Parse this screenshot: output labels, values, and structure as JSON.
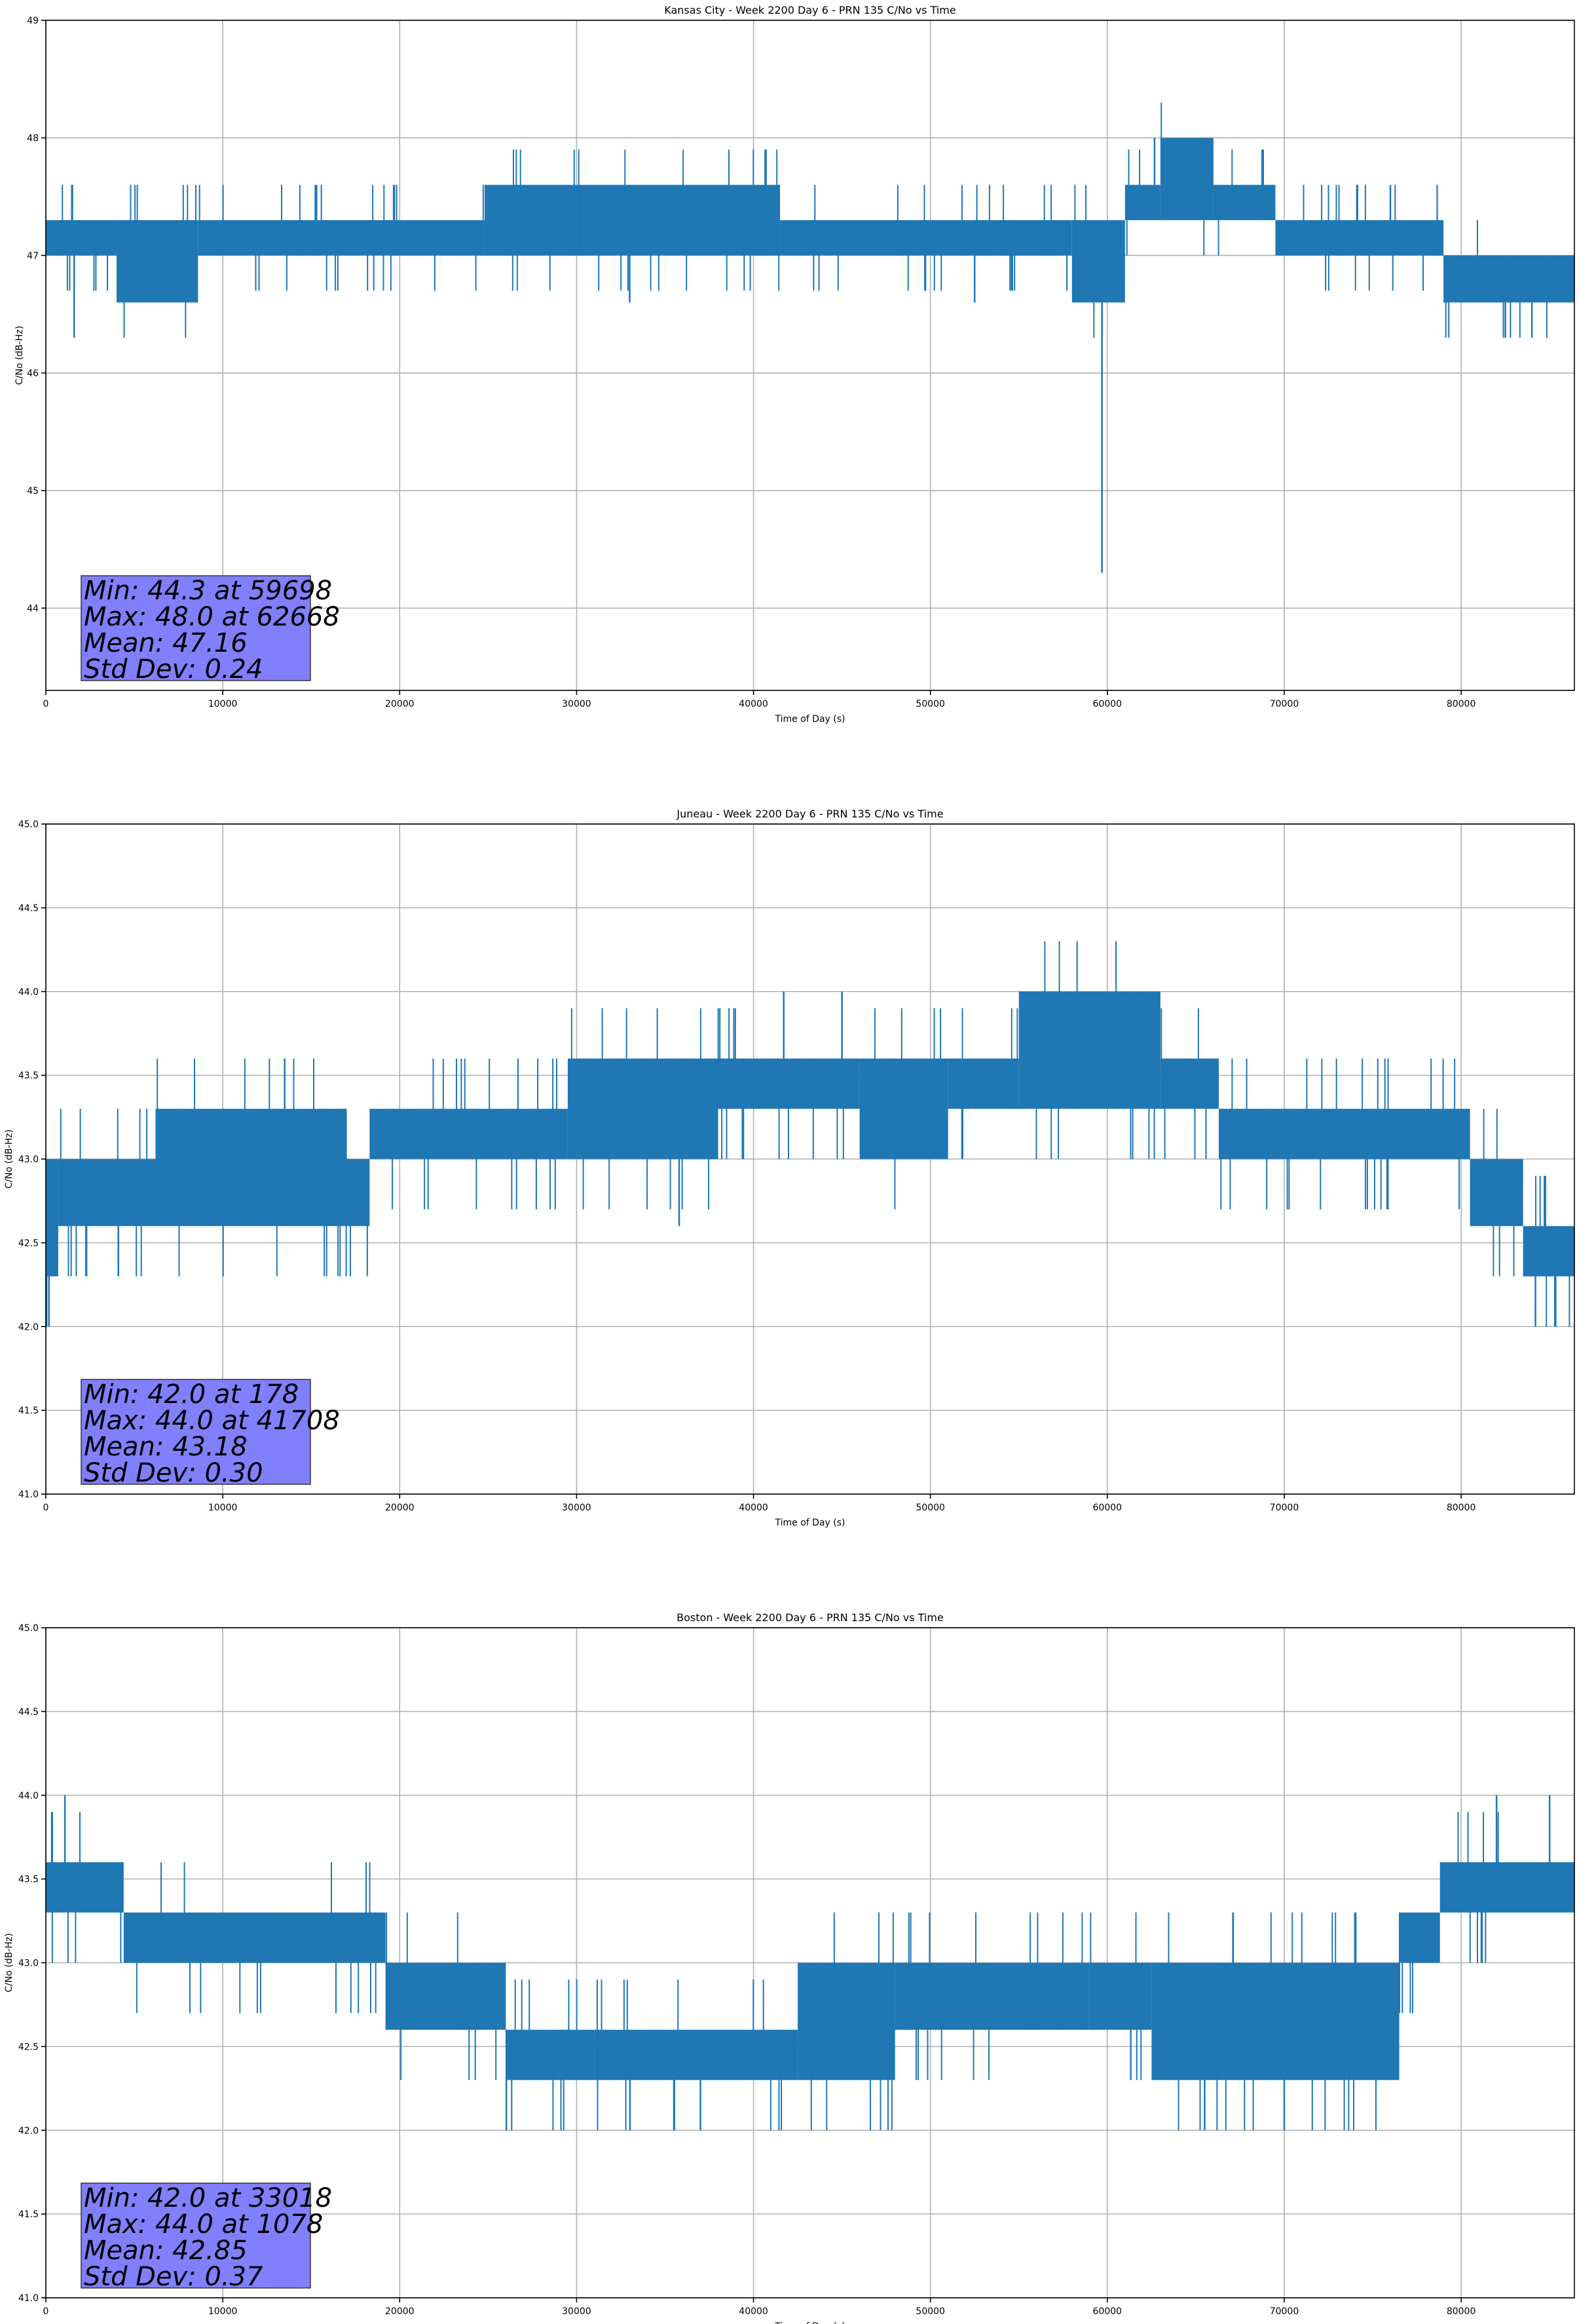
{
  "chart_data": [
    {
      "type": "line",
      "title": "Kansas City - Week 2200 Day 6 - PRN 135 C/No vs Time",
      "xlabel": "Time of Day (s)",
      "ylabel": "C/No (dB-Hz)",
      "xlim": [
        0,
        86400
      ],
      "ylim": [
        43.3,
        49
      ],
      "xticks": [
        0,
        10000,
        20000,
        30000,
        40000,
        50000,
        60000,
        70000,
        80000
      ],
      "xtick_labels": [
        "0",
        "10000",
        "20000",
        "30000",
        "40000",
        "50000",
        "60000",
        "70000",
        "80000"
      ],
      "yticks": [
        44,
        45,
        46,
        47,
        48,
        49
      ],
      "ytick_labels": [
        "44",
        "45",
        "46",
        "47",
        "48",
        "49"
      ],
      "grid": true,
      "color": "#1f77b4",
      "series": [
        {
          "segments": [
            {
              "x0": 0,
              "x1": 4000,
              "low": 47.0,
              "high": 47.3
            },
            {
              "x0": 4000,
              "x1": 8600,
              "low": 46.6,
              "high": 47.3
            },
            {
              "x0": 8600,
              "x1": 24800,
              "low": 47.0,
              "high": 47.3
            },
            {
              "x0": 24800,
              "x1": 30000,
              "low": 47.0,
              "high": 47.6
            },
            {
              "x0": 30000,
              "x1": 34000,
              "low": 47.0,
              "high": 47.6
            },
            {
              "x0": 34000,
              "x1": 41500,
              "low": 47.0,
              "high": 47.6
            },
            {
              "x0": 41500,
              "x1": 58000,
              "low": 47.0,
              "high": 47.3
            },
            {
              "x0": 58000,
              "x1": 61000,
              "low": 46.6,
              "high": 47.3
            },
            {
              "x0": 61000,
              "x1": 63000,
              "low": 47.3,
              "high": 47.6
            },
            {
              "x0": 63000,
              "x1": 66000,
              "low": 47.3,
              "high": 48.0
            },
            {
              "x0": 66000,
              "x1": 69500,
              "low": 47.3,
              "high": 47.6
            },
            {
              "x0": 69500,
              "x1": 79000,
              "low": 47.0,
              "high": 47.3
            },
            {
              "x0": 79000,
              "x1": 86400,
              "low": 46.6,
              "high": 47.0
            }
          ],
          "spikes": [
            {
              "x": 1500,
              "y": 47.6
            },
            {
              "x": 1600,
              "y": 46.3
            },
            {
              "x": 15300,
              "y": 47.6
            },
            {
              "x": 33000,
              "y": 46.6
            },
            {
              "x": 52500,
              "y": 46.6
            },
            {
              "x": 59698,
              "y": 44.3
            },
            {
              "x": 62668,
              "y": 48.0
            },
            {
              "x": 76000,
              "y": 47.6
            },
            {
              "x": 82500,
              "y": 46.3
            },
            {
              "x": 84000,
              "y": 46.3
            }
          ]
        }
      ],
      "annotation": [
        "Min: 44.3 at 59698",
        "Max: 48.0 at 62668",
        "Mean: 47.16",
        "Std Dev: 0.24"
      ]
    },
    {
      "type": "line",
      "title": "Juneau - Week 2200 Day 6 - PRN 135 C/No vs Time",
      "xlabel": "Time of Day (s)",
      "ylabel": "C/No (dB-Hz)",
      "xlim": [
        0,
        86400
      ],
      "ylim": [
        41.0,
        45.0
      ],
      "xticks": [
        0,
        10000,
        20000,
        30000,
        40000,
        50000,
        60000,
        70000,
        80000
      ],
      "xtick_labels": [
        "0",
        "10000",
        "20000",
        "30000",
        "40000",
        "50000",
        "60000",
        "70000",
        "80000"
      ],
      "yticks": [
        41.0,
        41.5,
        42.0,
        42.5,
        43.0,
        43.5,
        44.0,
        44.5,
        45.0
      ],
      "ytick_labels": [
        "41.0",
        "41.5",
        "42.0",
        "42.5",
        "43.0",
        "43.5",
        "44.0",
        "44.5",
        "45.0"
      ],
      "grid": true,
      "color": "#1f77b4",
      "series": [
        {
          "segments": [
            {
              "x0": 0,
              "x1": 700,
              "low": 42.3,
              "high": 43.0
            },
            {
              "x0": 700,
              "x1": 6200,
              "low": 42.6,
              "high": 43.0
            },
            {
              "x0": 6200,
              "x1": 17000,
              "low": 42.6,
              "high": 43.3
            },
            {
              "x0": 17000,
              "x1": 18300,
              "low": 42.6,
              "high": 43.0
            },
            {
              "x0": 18300,
              "x1": 29500,
              "low": 43.0,
              "high": 43.3
            },
            {
              "x0": 29500,
              "x1": 38000,
              "low": 43.0,
              "high": 43.6
            },
            {
              "x0": 38000,
              "x1": 46000,
              "low": 43.3,
              "high": 43.6
            },
            {
              "x0": 46000,
              "x1": 51000,
              "low": 43.0,
              "high": 43.6
            },
            {
              "x0": 51000,
              "x1": 55000,
              "low": 43.3,
              "high": 43.6
            },
            {
              "x0": 55000,
              "x1": 63000,
              "low": 43.3,
              "high": 44.0
            },
            {
              "x0": 63000,
              "x1": 66300,
              "low": 43.3,
              "high": 43.6
            },
            {
              "x0": 66300,
              "x1": 80500,
              "low": 43.0,
              "high": 43.3
            },
            {
              "x0": 80500,
              "x1": 83500,
              "low": 42.6,
              "high": 43.0
            },
            {
              "x0": 83500,
              "x1": 86400,
              "low": 42.3,
              "high": 42.6
            }
          ],
          "spikes": [
            {
              "x": 178,
              "y": 42.0
            },
            {
              "x": 2300,
              "y": 42.3
            },
            {
              "x": 4100,
              "y": 42.3
            },
            {
              "x": 13500,
              "y": 43.6
            },
            {
              "x": 35800,
              "y": 42.6
            },
            {
              "x": 41708,
              "y": 44.0
            },
            {
              "x": 45000,
              "y": 44.0
            },
            {
              "x": 84200,
              "y": 42.0
            },
            {
              "x": 85300,
              "y": 42.0
            }
          ]
        }
      ],
      "annotation": [
        "Min: 42.0 at 178",
        "Max: 44.0 at 41708",
        "Mean: 43.18",
        "Std Dev: 0.30"
      ]
    },
    {
      "type": "line",
      "title": "Boston - Week 2200 Day 6 - PRN 135 C/No vs Time",
      "xlabel": "Time of Day (s)",
      "ylabel": "C/No (dB-Hz)",
      "xlim": [
        0,
        86400
      ],
      "ylim": [
        41.0,
        45.0
      ],
      "xticks": [
        0,
        10000,
        20000,
        30000,
        40000,
        50000,
        60000,
        70000,
        80000
      ],
      "xtick_labels": [
        "0",
        "10000",
        "20000",
        "30000",
        "40000",
        "50000",
        "60000",
        "70000",
        "80000"
      ],
      "yticks": [
        41.0,
        41.5,
        42.0,
        42.5,
        43.0,
        43.5,
        44.0,
        44.5,
        45.0
      ],
      "ytick_labels": [
        "41.0",
        "41.5",
        "42.0",
        "42.5",
        "43.0",
        "43.5",
        "44.0",
        "44.5",
        "45.0"
      ],
      "grid": true,
      "color": "#1f77b4",
      "series": [
        {
          "segments": [
            {
              "x0": 0,
              "x1": 4400,
              "low": 43.3,
              "high": 43.6
            },
            {
              "x0": 4400,
              "x1": 19200,
              "low": 43.0,
              "high": 43.3
            },
            {
              "x0": 19200,
              "x1": 26000,
              "low": 42.6,
              "high": 43.0
            },
            {
              "x0": 26000,
              "x1": 31000,
              "low": 42.3,
              "high": 42.6
            },
            {
              "x0": 31000,
              "x1": 42500,
              "low": 42.3,
              "high": 42.6
            },
            {
              "x0": 42500,
              "x1": 48000,
              "low": 42.3,
              "high": 43.0
            },
            {
              "x0": 48000,
              "x1": 59000,
              "low": 42.6,
              "high": 43.0
            },
            {
              "x0": 59000,
              "x1": 62500,
              "low": 42.6,
              "high": 43.0
            },
            {
              "x0": 62500,
              "x1": 76500,
              "low": 42.3,
              "high": 43.0
            },
            {
              "x0": 76500,
              "x1": 78800,
              "low": 43.0,
              "high": 43.3
            },
            {
              "x0": 78800,
              "x1": 86400,
              "low": 43.3,
              "high": 43.6
            }
          ],
          "spikes": [
            {
              "x": 1078,
              "y": 44.0
            },
            {
              "x": 33018,
              "y": 42.0
            },
            {
              "x": 35500,
              "y": 42.0
            },
            {
              "x": 37000,
              "y": 42.0
            },
            {
              "x": 65500,
              "y": 42.0
            },
            {
              "x": 70000,
              "y": 42.0
            },
            {
              "x": 82000,
              "y": 44.0
            },
            {
              "x": 85000,
              "y": 44.0
            }
          ]
        }
      ],
      "annotation": [
        "Min: 42.0 at 33018",
        "Max: 44.0 at 1078",
        "Mean: 42.85",
        "Std Dev: 0.37"
      ]
    }
  ]
}
